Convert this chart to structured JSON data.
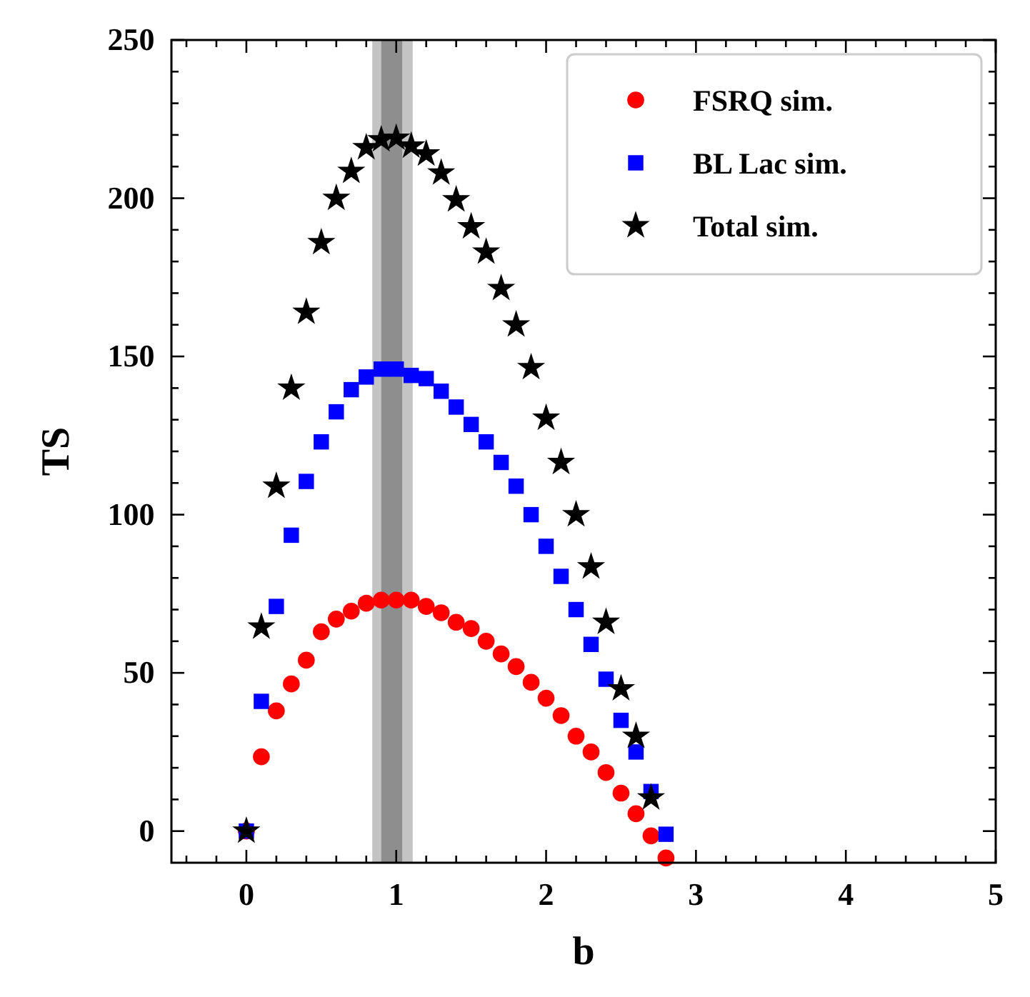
{
  "chart_data": {
    "type": "scatter",
    "xlabel": "b",
    "ylabel": "TS",
    "x": [
      0,
      0.1,
      0.2,
      0.3,
      0.4,
      0.5,
      0.6,
      0.7,
      0.8,
      0.9,
      1.0,
      1.1,
      1.2,
      1.3,
      1.4,
      1.5,
      1.6,
      1.7,
      1.8,
      1.9,
      2.0,
      2.1,
      2.2,
      2.3,
      2.4,
      2.5,
      2.6,
      2.7,
      2.8
    ],
    "series": [
      {
        "name": "FSRQ sim.",
        "color": "#ff0000",
        "marker": "circle",
        "values": [
          0,
          23.5,
          38,
          46.5,
          54,
          63,
          67,
          69.5,
          72,
          73,
          73,
          73,
          71,
          69,
          66,
          64,
          60,
          56,
          52,
          47,
          42,
          36.5,
          30,
          25,
          18.5,
          12,
          5.5,
          -1.5,
          -8.5
        ]
      },
      {
        "name": "BL Lac sim.",
        "color": "#0000ff",
        "marker": "square",
        "values": [
          0,
          41,
          71,
          93.5,
          110.5,
          123,
          132.5,
          139.5,
          143.5,
          146,
          146,
          144,
          143,
          139,
          134,
          128.5,
          123,
          116.5,
          109,
          100,
          90,
          80.5,
          70,
          59,
          48,
          35,
          25,
          12.5,
          -1
        ]
      },
      {
        "name": "Total sim.",
        "color": "#000000",
        "marker": "star",
        "values": [
          0,
          64.5,
          109,
          140,
          164,
          186,
          200,
          208.5,
          216,
          218.5,
          219,
          216.5,
          214,
          208,
          199.5,
          191,
          183,
          171.5,
          160,
          146.5,
          130.5,
          116.5,
          100,
          83.5,
          66,
          45,
          30,
          10.5,
          null
        ]
      }
    ],
    "bands": [
      {
        "axis": "x",
        "from": 0.84,
        "to": 1.11,
        "color": "#c4c4c4"
      },
      {
        "axis": "x",
        "from": 0.9,
        "to": 1.04,
        "color": "#8e8e8e"
      }
    ],
    "xlim": [
      -0.5,
      5
    ],
    "xticks": [
      {
        "value": -0.4,
        "label": null
      },
      {
        "value": -0.2,
        "label": null
      },
      0,
      {
        "value": 0.2,
        "label": null
      },
      {
        "value": 0.4,
        "label": null
      },
      {
        "value": 0.6,
        "label": null
      },
      {
        "value": 0.8,
        "label": null
      },
      1,
      {
        "value": 1.2,
        "label": null
      },
      {
        "value": 1.4,
        "label": null
      },
      {
        "value": 1.6,
        "label": null
      },
      {
        "value": 1.8,
        "label": null
      },
      2,
      {
        "value": 2.2,
        "label": null
      },
      {
        "value": 2.4,
        "label": null
      },
      {
        "value": 2.6,
        "label": null
      },
      {
        "value": 2.8,
        "label": null
      },
      3,
      {
        "value": 3.2,
        "label": null
      },
      {
        "value": 3.4,
        "label": null
      },
      {
        "value": 3.6,
        "label": null
      },
      {
        "value": 3.8,
        "label": null
      },
      4,
      {
        "value": 4.2,
        "label": null
      },
      {
        "value": 4.4,
        "label": null
      },
      {
        "value": 4.6,
        "label": null
      },
      {
        "value": 4.8,
        "label": null
      },
      5
    ],
    "ylim": [
      -10,
      250
    ],
    "yticks": [
      0,
      {
        "value": 10,
        "label": null
      },
      {
        "value": 20,
        "label": null
      },
      {
        "value": 30,
        "label": null
      },
      {
        "value": 40,
        "label": null
      },
      50,
      {
        "value": 60,
        "label": null
      },
      {
        "value": 70,
        "label": null
      },
      {
        "value": 80,
        "label": null
      },
      {
        "value": 90,
        "label": null
      },
      100,
      {
        "value": 110,
        "label": null
      },
      {
        "value": 120,
        "label": null
      },
      {
        "value": 130,
        "label": null
      },
      {
        "value": 140,
        "label": null
      },
      150,
      {
        "value": 160,
        "label": null
      },
      {
        "value": 170,
        "label": null
      },
      {
        "value": 180,
        "label": null
      },
      {
        "value": 190,
        "label": null
      },
      200,
      {
        "value": 210,
        "label": null
      },
      {
        "value": 220,
        "label": null
      },
      {
        "value": 230,
        "label": null
      },
      {
        "value": 240,
        "label": null
      },
      250
    ],
    "grid": false,
    "legend": "top right"
  }
}
